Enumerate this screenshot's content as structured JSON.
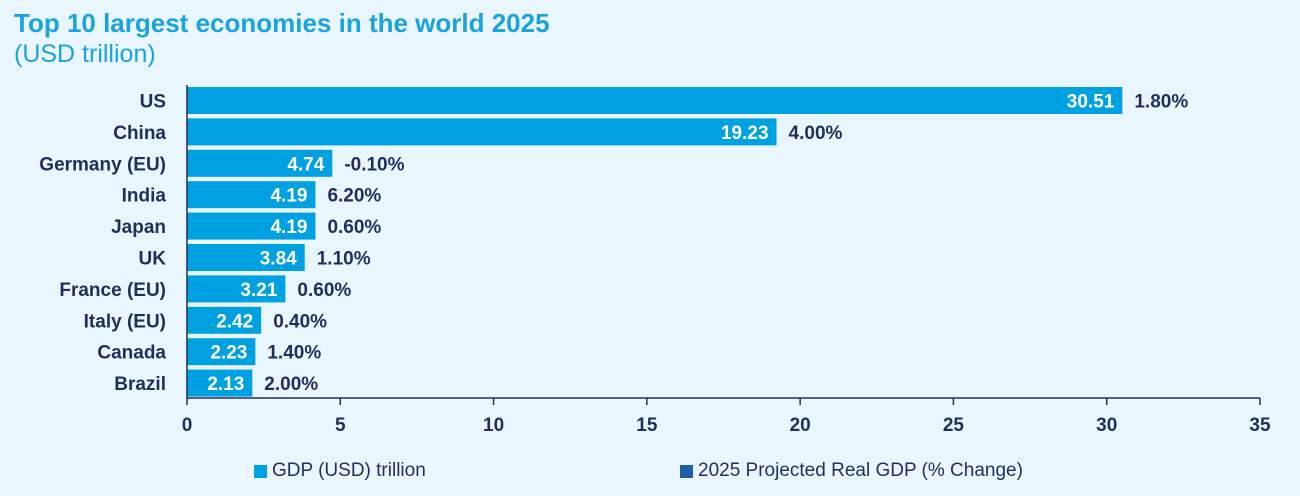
{
  "header": {
    "title": "Top 10 largest economies in the world 2025",
    "subtitle": "(USD trillion)"
  },
  "colors": {
    "gdp_bar": "#00a1e1",
    "growth_series": "#1f5fa8",
    "text_dark": "#1f2f5c",
    "title": "#1aa3de"
  },
  "chart_data": {
    "type": "bar",
    "orientation": "horizontal",
    "title": "Top 10 largest economies in the world 2025",
    "subtitle": "(USD trillion)",
    "categories": [
      "US",
      "China",
      "Germany (EU)",
      "India",
      "Japan",
      "UK",
      "France (EU)",
      "Italy (EU)",
      "Canada",
      "Brazil"
    ],
    "series": [
      {
        "name": "GDP (USD) trillion",
        "values": [
          30.51,
          19.23,
          4.74,
          4.19,
          4.19,
          3.84,
          3.21,
          2.42,
          2.23,
          2.13
        ],
        "labels": [
          "30.51",
          "19.23",
          "4.74",
          "4.19",
          "4.19",
          "3.84",
          "3.21",
          "2.42",
          "2.23",
          "2.13"
        ]
      },
      {
        "name": "2025 Projected Real GDP (% Change)",
        "values": [
          1.8,
          4.0,
          -0.1,
          6.2,
          0.6,
          1.1,
          0.6,
          0.4,
          1.4,
          2.0
        ],
        "labels": [
          "1.80%",
          "4.00%",
          "-0.10%",
          "6.20%",
          "0.60%",
          "1.10%",
          "0.60%",
          "0.40%",
          "1.40%",
          "2.00%"
        ]
      }
    ],
    "xlim": [
      0,
      35
    ],
    "xticks": [
      0,
      5,
      10,
      15,
      20,
      25,
      30,
      35
    ],
    "xlabel": "",
    "ylabel": "",
    "grid": false,
    "legend": {
      "position": "bottom",
      "entries": [
        "GDP (USD) trillion",
        "2025 Projected Real GDP (% Change)"
      ]
    }
  }
}
